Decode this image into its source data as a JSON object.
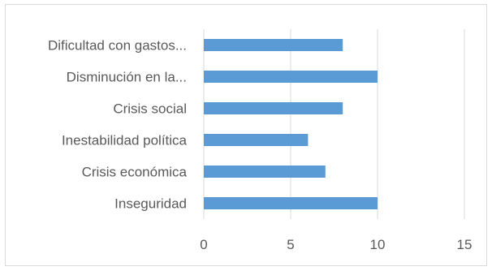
{
  "chart_data": {
    "type": "bar",
    "orientation": "horizontal",
    "categories": [
      "Dificultad con gastos...",
      "Disminución en la...",
      "Crisis social",
      "Inestabilidad política",
      "Crisis económica",
      "Inseguridad"
    ],
    "values": [
      8,
      10,
      8,
      6,
      7,
      10
    ],
    "xlim": [
      0,
      15
    ],
    "xticks": [
      "0",
      "5",
      "10",
      "15"
    ],
    "grid": "vertical",
    "legend": "none",
    "title": "",
    "xlabel": "",
    "ylabel": "",
    "colors": {
      "bar": "#5b9bd5",
      "grid": "#d9d9d9",
      "text": "#595959",
      "border": "#d9d9d9"
    }
  }
}
